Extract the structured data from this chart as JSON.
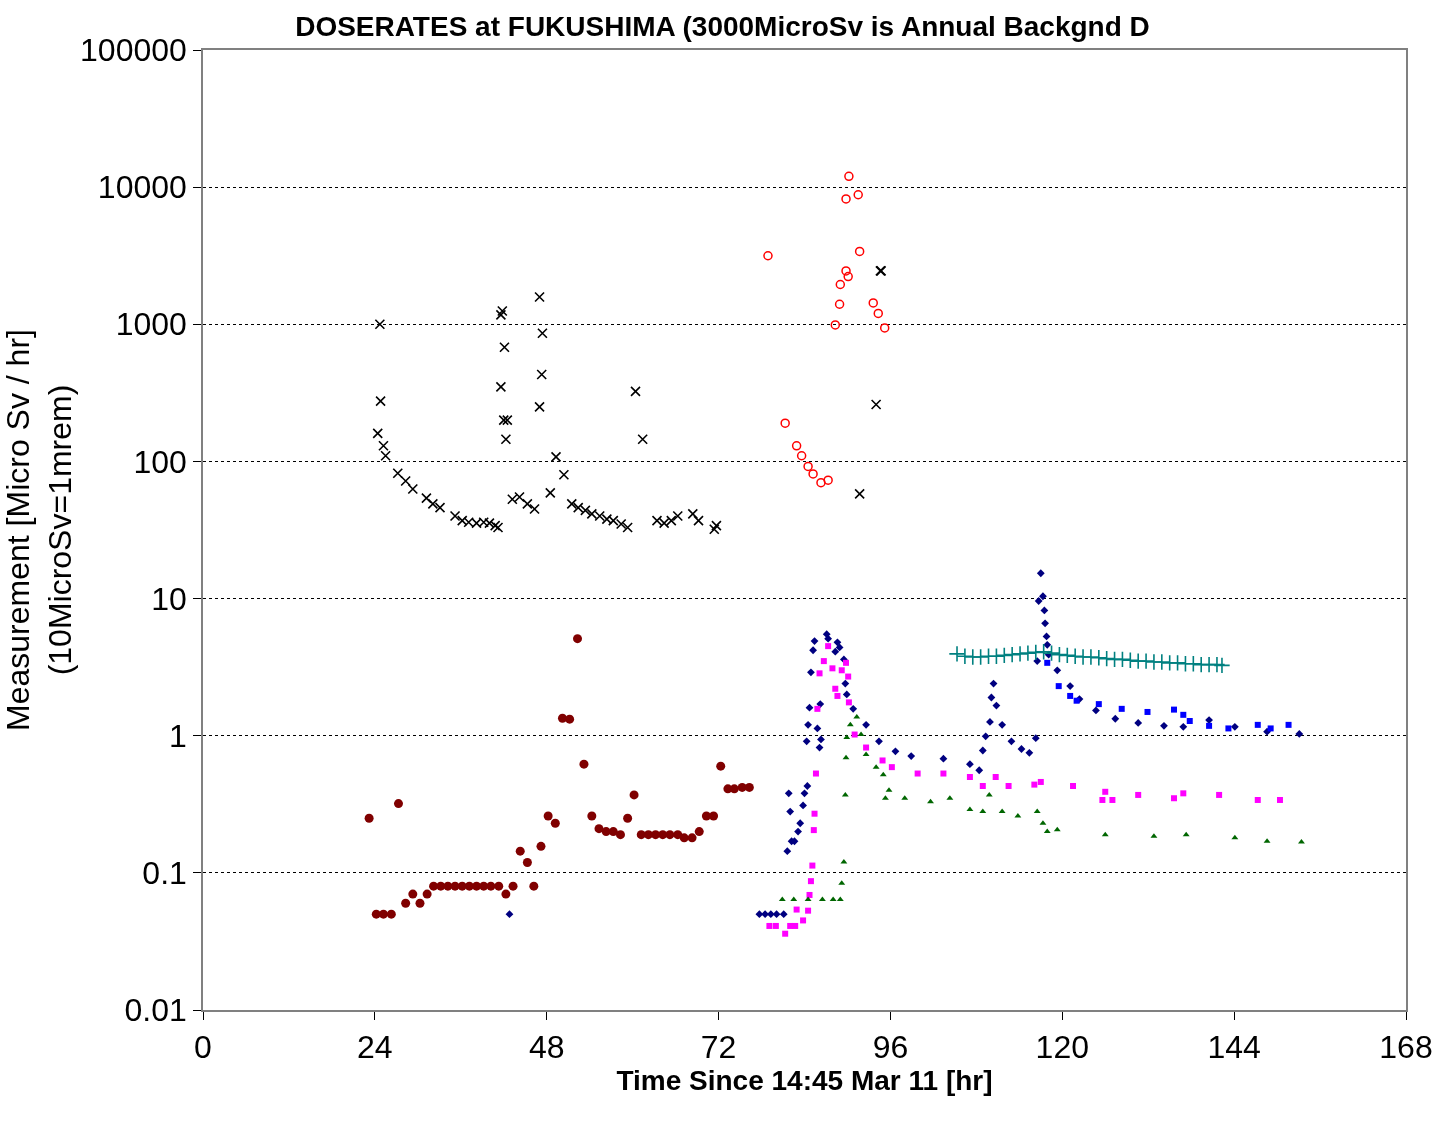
{
  "chart_data": {
    "type": "scatter",
    "title": "DOSERATES at FUKUSHIMA (3000MicroSv is Annual Backgnd D",
    "xlabel": "Time Since 14:45 Mar 11 [hr]",
    "ylabel": "Measurement [Micro Sv / hr]\n(10MicroSv=1mrem)",
    "log": true,
    "xlim": [
      0,
      168
    ],
    "xticks": [
      0,
      24,
      48,
      72,
      96,
      120,
      144,
      168
    ],
    "ylim": [
      0.01,
      100000
    ],
    "yticks": [
      0.01,
      0.1,
      1,
      10,
      100,
      1000,
      10000,
      100000
    ],
    "grid": "y",
    "series": [
      {
        "color": "#000000",
        "marker": "x",
        "x": [
          24.7,
          24.8,
          24.4,
          25.2,
          25.5,
          27.2,
          28.3,
          29.3,
          31.2,
          32.1,
          33.1,
          35.2,
          36.2,
          37.1,
          38.2,
          39.2,
          40.0,
          40.8,
          41.2,
          41.6,
          41.8,
          41.6,
          42.1,
          42.0,
          42.5,
          42.3,
          43.2,
          44.2,
          45.3,
          46.3,
          47.0,
          47.4,
          47.3,
          47.0,
          48.5,
          49.3,
          50.4,
          51.5,
          52.4,
          53.4,
          54.3,
          55.4,
          56.4,
          57.3,
          58.4,
          59.3,
          60.4,
          61.4,
          63.4,
          64.4,
          65.4,
          66.3,
          68.4,
          69.2,
          71.4,
          71.7,
          94.6,
          94.7,
          94.0,
          91.7
        ],
        "values": [
          1000,
          275,
          160,
          130,
          110,
          82,
          72,
          63,
          54,
          49,
          46,
          40,
          37,
          36,
          35.5,
          36,
          35.5,
          34,
          33,
          1170,
          1250,
          350,
          680,
          200,
          200,
          145,
          53,
          55,
          49,
          45,
          1580,
          860,
          430,
          250,
          59,
          108,
          80,
          49,
          46,
          44,
          41.5,
          40,
          38,
          37,
          35,
          33,
          324,
          145,
          37,
          35.5,
          37,
          40,
          41.5,
          37,
          32,
          34,
          2450,
          2450,
          260,
          58
        ]
      },
      {
        "color": "#ff0000",
        "marker": "circle-open",
        "x": [
          90.2,
          89.8,
          91.5,
          78.9,
          91.7,
          89.8,
          90.1,
          89.0,
          88.9,
          93.6,
          94.3,
          88.3,
          95.2,
          81.3,
          82.9,
          83.6,
          84.5,
          85.2,
          86.3,
          87.3
        ],
        "values": [
          12000,
          8200,
          8800,
          3160,
          3400,
          2450,
          2230,
          1950,
          1400,
          1430,
          1200,
          990,
          940,
          190,
          130,
          110,
          92,
          81,
          70,
          73
        ]
      },
      {
        "color": "#800000",
        "marker": "circle",
        "x": [
          23.2,
          24.2,
          25.2,
          26.3,
          27.3,
          28.3,
          29.3,
          30.3,
          31.3,
          32.2,
          33.2,
          34.2,
          35.2,
          36.2,
          37.2,
          38.2,
          39.2,
          40.2,
          41.3,
          42.3,
          43.3,
          44.3,
          45.3,
          46.2,
          47.2,
          48.2,
          49.2,
          50.2,
          51.2,
          52.3,
          53.2,
          54.3,
          55.3,
          56.3,
          57.3,
          58.3,
          59.3,
          60.2,
          61.2,
          62.2,
          63.2,
          64.2,
          65.2,
          66.3,
          67.2,
          68.3,
          69.3,
          70.3,
          71.3,
          72.3,
          73.3,
          74.2,
          75.3,
          76.3
        ],
        "values": [
          0.25,
          0.05,
          0.05,
          0.05,
          0.32,
          0.06,
          0.07,
          0.06,
          0.07,
          0.08,
          0.08,
          0.08,
          0.08,
          0.08,
          0.08,
          0.08,
          0.08,
          0.08,
          0.08,
          0.07,
          0.08,
          0.144,
          0.119,
          0.08,
          0.156,
          0.26,
          0.23,
          1.34,
          1.32,
          5.1,
          0.62,
          0.26,
          0.21,
          0.2,
          0.2,
          0.19,
          0.25,
          0.37,
          0.19,
          0.19,
          0.19,
          0.19,
          0.19,
          0.19,
          0.18,
          0.18,
          0.2,
          0.26,
          0.26,
          0.6,
          0.41,
          0.41,
          0.42,
          0.42
        ]
      },
      {
        "color": "#000080",
        "marker": "diamond",
        "x": [
          42.8,
          77.7,
          78.5,
          79.3,
          80.1,
          81.1,
          81.6,
          82.2,
          82.6,
          83.1,
          83.4,
          82.0,
          81.8,
          83.8,
          84.0,
          84.4,
          84.3,
          84.5,
          84.7,
          84.9,
          85.2,
          85.4,
          86.2,
          85.8,
          86.1,
          86.3,
          87.1,
          87.3,
          88.3,
          88.6,
          88.9,
          89.5,
          89.7,
          89.9,
          90.8,
          92.6,
          94.4,
          96.7,
          98.9,
          103.4,
          107.1,
          108.4,
          108.9,
          109.3,
          109.9,
          110.1,
          110.4,
          110.8,
          111.6,
          112.9,
          114.3,
          115.4,
          116.3,
          116.5,
          116.7,
          117.0,
          117.3,
          117.5,
          117.6,
          117.8,
          117.9,
          118.1,
          119.3,
          121.1,
          122.4,
          124.7,
          127.4,
          130.6,
          134.2,
          136.9,
          140.5,
          144.1,
          148.6,
          153.1
        ],
        "values": [
          0.05,
          0.05,
          0.05,
          0.05,
          0.05,
          0.05,
          0.144,
          0.17,
          0.17,
          0.2,
          0.23,
          0.28,
          0.38,
          0.31,
          0.38,
          0.43,
          0.91,
          1.2,
          1.6,
          2.9,
          4.2,
          4.9,
          1.7,
          1.13,
          0.82,
          0.94,
          5.5,
          5.1,
          4.1,
          4.8,
          4.4,
          3.6,
          2.4,
          2.0,
          1.57,
          1.2,
          0.91,
          0.77,
          0.71,
          0.68,
          0.62,
          0.56,
          0.78,
          0.99,
          1.26,
          1.9,
          2.4,
          1.66,
          1.2,
          0.91,
          0.8,
          0.75,
          0.96,
          3.5,
          9.6,
          15.3,
          10.4,
          8.2,
          6.6,
          5.3,
          4.6,
          3.9,
          3.0,
          2.3,
          1.85,
          1.53,
          1.33,
          1.24,
          1.18,
          1.16,
          1.3,
          1.16,
          1.07,
          1.03
        ]
      },
      {
        "color": "#ff00ff",
        "marker": "square",
        "x": [
          79.1,
          80.0,
          81.3,
          82.0,
          82.7,
          82.9,
          83.8,
          84.5,
          84.7,
          84.9,
          85.1,
          85.3,
          85.4,
          85.6,
          85.8,
          86.1,
          86.7,
          87.3,
          87.9,
          88.3,
          88.6,
          89.2,
          89.8,
          90.1,
          90.2,
          91.0,
          92.6,
          94.9,
          96.2,
          99.8,
          103.4,
          107.1,
          108.9,
          110.7,
          112.5,
          116.1,
          117.0,
          121.5,
          125.6,
          126.0,
          127.0,
          130.6,
          135.6,
          136.9,
          141.9,
          147.3,
          150.4
        ],
        "values": [
          0.041,
          0.041,
          0.036,
          0.041,
          0.041,
          0.054,
          0.045,
          0.053,
          0.069,
          0.087,
          0.113,
          0.205,
          0.27,
          0.53,
          1.57,
          2.85,
          3.5,
          4.5,
          3.1,
          2.2,
          1.95,
          3.0,
          3.4,
          2.7,
          1.75,
          1.02,
          0.82,
          0.66,
          0.59,
          0.53,
          0.53,
          0.5,
          0.43,
          0.5,
          0.43,
          0.44,
          0.46,
          0.43,
          0.34,
          0.39,
          0.34,
          0.37,
          0.35,
          0.38,
          0.37,
          0.34,
          0.34
        ]
      },
      {
        "color": "#006600",
        "marker": "triangle",
        "x": [
          80.9,
          82.5,
          84.5,
          86.5,
          88.0,
          89.0,
          89.2,
          89.5,
          89.7,
          89.8,
          89.9,
          90.4,
          91.3,
          91.9,
          92.6,
          94.0,
          95.0,
          95.3,
          95.8,
          98.0,
          101.6,
          104.3,
          107.1,
          108.9,
          109.8,
          111.6,
          113.8,
          116.5,
          117.3,
          117.9,
          119.3,
          126.0,
          132.8,
          137.3,
          144.1,
          148.6,
          153.4
        ],
        "values": [
          0.064,
          0.064,
          0.064,
          0.064,
          0.064,
          0.064,
          0.084,
          0.12,
          0.37,
          0.69,
          0.97,
          1.2,
          1.37,
          1.02,
          0.73,
          0.59,
          0.52,
          0.35,
          0.4,
          0.35,
          0.33,
          0.35,
          0.29,
          0.28,
          0.37,
          0.28,
          0.26,
          0.28,
          0.23,
          0.2,
          0.206,
          0.19,
          0.185,
          0.19,
          0.18,
          0.17,
          0.168
        ]
      },
      {
        "color": "#008080",
        "marker": "cross",
        "x": [
          105.3,
          106.4,
          107.5,
          108.6,
          109.7,
          110.8,
          111.9,
          113.0,
          114.1,
          115.2,
          116.3,
          117.4,
          118.5,
          119.6,
          120.7,
          121.8,
          122.9,
          124.0,
          125.1,
          126.2,
          127.3,
          128.4,
          129.5,
          130.6,
          131.7,
          132.8,
          133.9,
          135.0,
          136.1,
          137.2,
          138.3,
          139.4,
          140.5,
          141.6,
          142.3
        ],
        "values": [
          3.95,
          3.8,
          3.75,
          3.75,
          3.8,
          3.8,
          3.85,
          3.9,
          3.95,
          4.0,
          4.05,
          4.1,
          4.0,
          3.9,
          3.85,
          3.8,
          3.75,
          3.75,
          3.7,
          3.65,
          3.6,
          3.6,
          3.55,
          3.5,
          3.5,
          3.45,
          3.45,
          3.4,
          3.4,
          3.35,
          3.35,
          3.3,
          3.3,
          3.3,
          3.26
        ]
      },
      {
        "color": "#0000ff",
        "marker": "square",
        "x": [
          117.9,
          119.5,
          121.1,
          122.0,
          125.1,
          128.3,
          131.9,
          135.6,
          136.9,
          137.8,
          140.5,
          143.2,
          147.3,
          149.1,
          151.6
        ],
        "values": [
          3.4,
          2.3,
          1.95,
          1.8,
          1.7,
          1.57,
          1.49,
          1.55,
          1.42,
          1.28,
          1.18,
          1.13,
          1.2,
          1.13,
          1.2
        ]
      }
    ]
  }
}
